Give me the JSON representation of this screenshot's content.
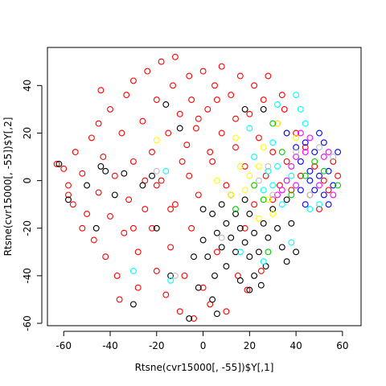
{
  "chart_data": {
    "type": "scatter",
    "title": "",
    "xlabel": "Rtsne(cvr15000[, -55])$Y[,1]",
    "ylabel": "Rtsne(cvr15000[, -55])$Y[,2]",
    "xlim": [
      -67,
      68
    ],
    "ylim": [
      -61,
      56
    ],
    "xticks": [
      -60,
      -40,
      -20,
      0,
      20,
      40,
      60
    ],
    "yticks": [
      -60,
      -40,
      -20,
      0,
      20,
      40
    ],
    "xtick_labels": [
      "-60",
      "-40",
      "-20",
      "0",
      "20",
      "40",
      "60"
    ],
    "ytick_labels": [
      "-60",
      "-40",
      "-20",
      "0",
      "20",
      "40"
    ],
    "grid": false,
    "marker": "open circle",
    "series": [
      {
        "color": "#ff0000",
        "points": [
          [
            -63,
            7
          ],
          [
            -60,
            5
          ],
          [
            -58,
            -2
          ],
          [
            -56,
            -10
          ],
          [
            -55,
            12
          ],
          [
            -52,
            3
          ],
          [
            -50,
            -14
          ],
          [
            -48,
            18
          ],
          [
            -47,
            -25
          ],
          [
            -45,
            -5
          ],
          [
            -45,
            24
          ],
          [
            -43,
            10
          ],
          [
            -42,
            -32
          ],
          [
            -40,
            -15
          ],
          [
            -40,
            30
          ],
          [
            -38,
            2
          ],
          [
            -37,
            -40
          ],
          [
            -35,
            20
          ],
          [
            -34,
            -22
          ],
          [
            -33,
            36
          ],
          [
            -32,
            -8
          ],
          [
            -30,
            42
          ],
          [
            -30,
            8
          ],
          [
            -28,
            -30
          ],
          [
            -28,
            -45
          ],
          [
            -26,
            25
          ],
          [
            -25,
            -12
          ],
          [
            -24,
            46
          ],
          [
            -22,
            -20
          ],
          [
            -22,
            12
          ],
          [
            -20,
            -38
          ],
          [
            -20,
            34
          ],
          [
            -18,
            50
          ],
          [
            -18,
            0
          ],
          [
            -16,
            -48
          ],
          [
            -15,
            20
          ],
          [
            -14,
            -28
          ],
          [
            -13,
            40
          ],
          [
            -12,
            -10
          ],
          [
            -12,
            52
          ],
          [
            -10,
            -55
          ],
          [
            -10,
            28
          ],
          [
            -9,
            8
          ],
          [
            -8,
            -40
          ],
          [
            -7,
            15
          ],
          [
            -6,
            44
          ],
          [
            -5,
            -20
          ],
          [
            -5,
            34
          ],
          [
            -4,
            -58
          ],
          [
            -3,
            22
          ],
          [
            -2,
            -6
          ],
          [
            0,
            46
          ],
          [
            0,
            -45
          ],
          [
            2,
            30
          ],
          [
            3,
            12
          ],
          [
            3,
            -52
          ],
          [
            5,
            40
          ],
          [
            6,
            -30
          ],
          [
            8,
            20
          ],
          [
            8,
            48
          ],
          [
            10,
            -2
          ],
          [
            10,
            -55
          ],
          [
            12,
            36
          ],
          [
            14,
            14
          ],
          [
            15,
            -40
          ],
          [
            16,
            44
          ],
          [
            18,
            6
          ],
          [
            19,
            -46
          ],
          [
            20,
            28
          ],
          [
            22,
            40
          ],
          [
            22,
            -10
          ],
          [
            24,
            18
          ],
          [
            25,
            -38
          ],
          [
            26,
            34
          ],
          [
            27,
            2
          ],
          [
            28,
            44
          ],
          [
            30,
            12
          ],
          [
            30,
            -8
          ],
          [
            32,
            24
          ],
          [
            33,
            -2
          ],
          [
            34,
            36
          ],
          [
            36,
            8
          ],
          [
            38,
            -4
          ],
          [
            40,
            20
          ],
          [
            42,
            2
          ],
          [
            44,
            14
          ],
          [
            46,
            -6
          ],
          [
            48,
            6
          ],
          [
            50,
            -12
          ],
          [
            52,
            0
          ],
          [
            54,
            -4
          ],
          [
            56,
            8
          ],
          [
            58,
            2
          ],
          [
            35,
            30
          ],
          [
            18,
            -20
          ],
          [
            -52,
            -20
          ],
          [
            -58,
            -6
          ],
          [
            -36,
            -50
          ],
          [
            -25,
            0
          ],
          [
            -44,
            38
          ],
          [
            -20,
            -2
          ],
          [
            -14,
            -12
          ],
          [
            -30,
            -20
          ],
          [
            -6,
            2
          ],
          [
            4,
            8
          ],
          [
            -2,
            26
          ],
          [
            14,
            26
          ],
          [
            6,
            34
          ]
        ]
      },
      {
        "color": "#000000",
        "points": [
          [
            -62,
            7
          ],
          [
            -58,
            -8
          ],
          [
            -50,
            -2
          ],
          [
            -46,
            -20
          ],
          [
            -42,
            4
          ],
          [
            -38,
            -6
          ],
          [
            -34,
            3
          ],
          [
            -30,
            -52
          ],
          [
            -26,
            -2
          ],
          [
            -22,
            2
          ],
          [
            -20,
            -20
          ],
          [
            -16,
            32
          ],
          [
            -14,
            -40
          ],
          [
            -10,
            22
          ],
          [
            -6,
            -58
          ],
          [
            -2,
            -45
          ],
          [
            0,
            -12
          ],
          [
            0,
            -25
          ],
          [
            2,
            -32
          ],
          [
            4,
            -14
          ],
          [
            5,
            -40
          ],
          [
            6,
            -22
          ],
          [
            8,
            -10
          ],
          [
            8,
            -28
          ],
          [
            10,
            -18
          ],
          [
            10,
            -36
          ],
          [
            12,
            -6
          ],
          [
            12,
            -24
          ],
          [
            14,
            -14
          ],
          [
            14,
            -30
          ],
          [
            16,
            -20
          ],
          [
            18,
            -8
          ],
          [
            18,
            -26
          ],
          [
            20,
            -14
          ],
          [
            20,
            -32
          ],
          [
            22,
            -22
          ],
          [
            22,
            -40
          ],
          [
            24,
            -30
          ],
          [
            25,
            -44
          ],
          [
            26,
            -18
          ],
          [
            27,
            -36
          ],
          [
            28,
            -24
          ],
          [
            30,
            -12
          ],
          [
            32,
            -20
          ],
          [
            34,
            -28
          ],
          [
            36,
            -34
          ],
          [
            38,
            -18
          ],
          [
            40,
            -30
          ],
          [
            36,
            -8
          ],
          [
            26,
            30
          ],
          [
            18,
            30
          ],
          [
            4,
            -50
          ],
          [
            6,
            -56
          ],
          [
            -4,
            -32
          ],
          [
            16,
            -42
          ],
          [
            20,
            -46
          ],
          [
            -44,
            6
          ]
        ]
      },
      {
        "color": "#ffff00",
        "points": [
          [
            -20,
            17
          ],
          [
            14,
            18
          ],
          [
            16,
            6
          ],
          [
            18,
            -4
          ],
          [
            20,
            2
          ],
          [
            22,
            -2
          ],
          [
            24,
            6
          ],
          [
            26,
            14
          ],
          [
            28,
            -8
          ],
          [
            30,
            -14
          ],
          [
            12,
            -6
          ],
          [
            32,
            24
          ],
          [
            36,
            20
          ],
          [
            40,
            18
          ],
          [
            24,
            -16
          ],
          [
            6,
            0
          ]
        ]
      },
      {
        "color": "#00ffff",
        "points": [
          [
            -16,
            4
          ],
          [
            20,
            22
          ],
          [
            22,
            10
          ],
          [
            26,
            -4
          ],
          [
            28,
            4
          ],
          [
            30,
            -2
          ],
          [
            32,
            6
          ],
          [
            34,
            -10
          ],
          [
            36,
            0
          ],
          [
            38,
            2
          ],
          [
            40,
            36
          ],
          [
            42,
            30
          ],
          [
            44,
            24
          ],
          [
            46,
            -12
          ],
          [
            50,
            -10
          ],
          [
            -30,
            -38
          ],
          [
            26,
            -34
          ],
          [
            16,
            -30
          ],
          [
            38,
            -26
          ],
          [
            -14,
            -42
          ],
          [
            32,
            32
          ],
          [
            30,
            16
          ]
        ]
      },
      {
        "color": "#0000ff",
        "points": [
          [
            36,
            20
          ],
          [
            40,
            14
          ],
          [
            42,
            8
          ],
          [
            44,
            16
          ],
          [
            46,
            4
          ],
          [
            48,
            12
          ],
          [
            48,
            -4
          ],
          [
            50,
            20
          ],
          [
            50,
            2
          ],
          [
            52,
            -6
          ],
          [
            52,
            16
          ],
          [
            54,
            4
          ],
          [
            54,
            -10
          ],
          [
            56,
            -2
          ],
          [
            58,
            12
          ],
          [
            42,
            -4
          ],
          [
            44,
            -10
          ],
          [
            46,
            0
          ]
        ]
      },
      {
        "color": "#ff00ff",
        "points": [
          [
            32,
            -6
          ],
          [
            34,
            -4
          ],
          [
            36,
            0
          ],
          [
            38,
            6
          ],
          [
            40,
            -2
          ],
          [
            44,
            12
          ],
          [
            46,
            18
          ],
          [
            50,
            -2
          ],
          [
            52,
            10
          ],
          [
            54,
            12
          ],
          [
            56,
            -6
          ],
          [
            40,
            10
          ],
          [
            42,
            20
          ]
        ]
      },
      {
        "color": "#00cd00",
        "points": [
          [
            22,
            -2
          ],
          [
            26,
            -8
          ],
          [
            30,
            24
          ],
          [
            34,
            12
          ],
          [
            38,
            -6
          ],
          [
            44,
            2
          ],
          [
            48,
            8
          ],
          [
            52,
            4
          ],
          [
            58,
            -2
          ],
          [
            28,
            -30
          ],
          [
            14,
            -12
          ]
        ]
      },
      {
        "color": "#bebebe",
        "points": [
          [
            24,
            0
          ],
          [
            28,
            6
          ],
          [
            30,
            -6
          ],
          [
            40,
            12
          ],
          [
            46,
            -6
          ],
          [
            50,
            14
          ],
          [
            -20,
            4
          ],
          [
            -12,
            -40
          ],
          [
            56,
            10
          ],
          [
            8,
            -24
          ]
        ]
      }
    ]
  }
}
